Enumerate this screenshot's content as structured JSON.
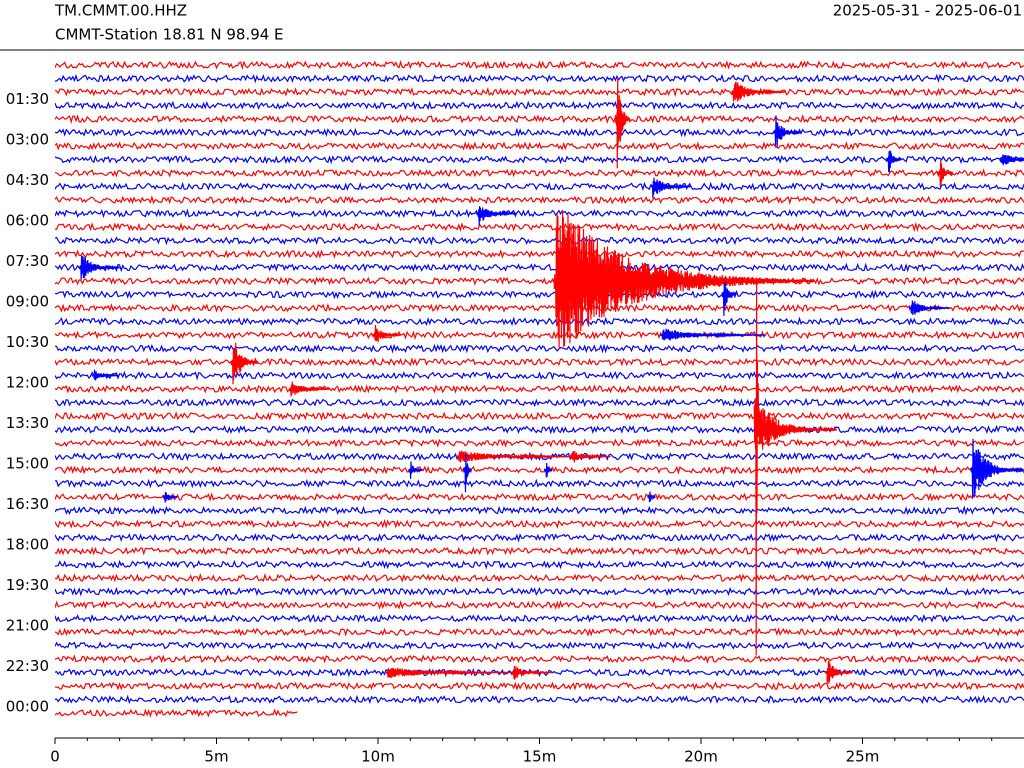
{
  "chart_data": {
    "type": "helicorder",
    "title": "TM.CMMT.00.HHZ",
    "subtitle": "CMMT-Station  18.81 N 98.94 E",
    "date_range": "2025-05-31 - 2025-06-01",
    "xlim": [
      0,
      30
    ],
    "xticks": [
      {
        "value": 0,
        "label": "0"
      },
      {
        "value": 5,
        "label": "5m"
      },
      {
        "value": 10,
        "label": "10m"
      },
      {
        "value": 15,
        "label": "15m"
      },
      {
        "value": 20,
        "label": "20m"
      },
      {
        "value": 25,
        "label": "25m"
      }
    ],
    "xminor": [
      1,
      2,
      3,
      4,
      6,
      7,
      8,
      9,
      11,
      12,
      13,
      14,
      16,
      17,
      18,
      19,
      21,
      22,
      23,
      24,
      26,
      27,
      28,
      29
    ],
    "ylim": [
      0,
      48
    ],
    "yticks": [
      {
        "value": 3,
        "label": "01:30"
      },
      {
        "value": 6,
        "label": "03:00"
      },
      {
        "value": 9,
        "label": "04:30"
      },
      {
        "value": 12,
        "label": "06:00"
      },
      {
        "value": 15,
        "label": "07:30"
      },
      {
        "value": 18,
        "label": "09:00"
      },
      {
        "value": 21,
        "label": "10:30"
      },
      {
        "value": 24,
        "label": "12:00"
      },
      {
        "value": 27,
        "label": "13:30"
      },
      {
        "value": 30,
        "label": "15:00"
      },
      {
        "value": 33,
        "label": "16:30"
      },
      {
        "value": 36,
        "label": "18:00"
      },
      {
        "value": 39,
        "label": "19:30"
      },
      {
        "value": 42,
        "label": "21:00"
      },
      {
        "value": 45,
        "label": "22:30"
      },
      {
        "value": 48,
        "label": "00:00"
      }
    ],
    "trace_colors": [
      "#ff0000",
      "#0000ff"
    ],
    "last_trace_end": 7.5,
    "events": [
      {
        "row": 16,
        "x": 15.5,
        "amp": 6,
        "dur": 2,
        "color": "#ff0000"
      },
      {
        "row": 26,
        "x": 21.7,
        "amp": 25,
        "dur": 0.03,
        "color": "#ff0000"
      },
      {
        "row": 4,
        "x": 17.4,
        "amp": 5,
        "dur": 0.1,
        "color": "#ff0000"
      },
      {
        "row": 2,
        "x": 21.0,
        "amp": 1,
        "dur": 0.4,
        "color": "#ff0000"
      },
      {
        "row": 9,
        "x": 18.5,
        "amp": 1,
        "dur": 0.3,
        "color": "#0000ff"
      },
      {
        "row": 5,
        "x": 22.3,
        "amp": 1.5,
        "dur": 0.2,
        "color": "#0000ff"
      },
      {
        "row": 7,
        "x": 25.8,
        "amp": 1.5,
        "dur": 0.1,
        "color": "#0000ff"
      },
      {
        "row": 7,
        "x": 29.3,
        "amp": 0.7,
        "dur": 0.3,
        "color": "#0000ff"
      },
      {
        "row": 8,
        "x": 27.4,
        "amp": 1.5,
        "dur": 0.1,
        "color": "#ff0000"
      },
      {
        "row": 11,
        "x": 13.1,
        "amp": 1,
        "dur": 0.3,
        "color": "#0000ff"
      },
      {
        "row": 15,
        "x": 0.8,
        "amp": 1.2,
        "dur": 0.3,
        "color": "#0000ff"
      },
      {
        "row": 17,
        "x": 20.7,
        "amp": 2,
        "dur": 0.1,
        "color": "#0000ff"
      },
      {
        "row": 18,
        "x": 26.5,
        "amp": 0.8,
        "dur": 0.3,
        "color": "#0000ff"
      },
      {
        "row": 20,
        "x": 18.8,
        "amp": 0.6,
        "dur": 0.8,
        "color": "#0000ff"
      },
      {
        "row": 20,
        "x": 9.9,
        "amp": 1,
        "dur": 0.2,
        "color": "#ff0000"
      },
      {
        "row": 22,
        "x": 5.5,
        "amp": 2.5,
        "dur": 0.2,
        "color": "#ff0000"
      },
      {
        "row": 23,
        "x": 1.2,
        "amp": 0.5,
        "dur": 0.2,
        "color": "#0000ff"
      },
      {
        "row": 24,
        "x": 7.3,
        "amp": 0.7,
        "dur": 0.3,
        "color": "#ff0000"
      },
      {
        "row": 27,
        "x": 21.8,
        "amp": 2,
        "dur": 0.6,
        "color": "#ff0000"
      },
      {
        "row": 29,
        "x": 12.5,
        "amp": 0.5,
        "dur": 1,
        "color": "#ff0000"
      },
      {
        "row": 29,
        "x": 16,
        "amp": 0.6,
        "dur": 0.3,
        "color": "#ff0000"
      },
      {
        "row": 30,
        "x": 28.4,
        "amp": 2.5,
        "dur": 0.4,
        "color": "#0000ff"
      },
      {
        "row": 30,
        "x": 12.7,
        "amp": 2.5,
        "dur": 0.05,
        "color": "#0000ff"
      },
      {
        "row": 30,
        "x": 11,
        "amp": 0.8,
        "dur": 0.1,
        "color": "#0000ff"
      },
      {
        "row": 30,
        "x": 15.2,
        "amp": 1.2,
        "dur": 0.05,
        "color": "#0000ff"
      },
      {
        "row": 32,
        "x": 3.4,
        "amp": 0.7,
        "dur": 0.1,
        "color": "#0000ff"
      },
      {
        "row": 32,
        "x": 18.4,
        "amp": 0.7,
        "dur": 0.05,
        "color": "#0000ff"
      },
      {
        "row": 45,
        "x": 10.3,
        "amp": 0.5,
        "dur": 1,
        "color": "#ff0000"
      },
      {
        "row": 45,
        "x": 14.2,
        "amp": 0.6,
        "dur": 0.3,
        "color": "#ff0000"
      },
      {
        "row": 45,
        "x": 23.9,
        "amp": 1.2,
        "dur": 0.2,
        "color": "#ff0000"
      }
    ]
  }
}
